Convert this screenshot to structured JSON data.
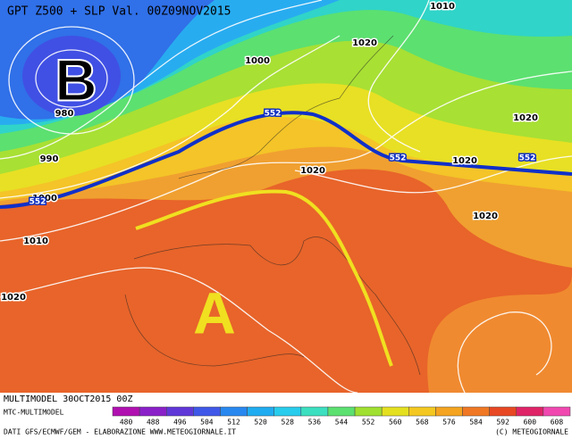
{
  "header": {
    "title": "GPT Z500 + SLP Val. 00Z09NOV2015"
  },
  "map": {
    "low_label": "B",
    "high_label": "A",
    "isobar_labels": [
      1010,
      1020,
      1000,
      980,
      990,
      1000,
      1010,
      1020,
      1020,
      1020,
      1020,
      1020
    ],
    "contour_labels": [
      552,
      552,
      552,
      552
    ]
  },
  "footer": {
    "run": "MULTIMODEL 30OCT2015 00Z",
    "source": "MTC-MULTIMODEL",
    "credits": "DATI GFS/ECMWF/GEM - ELABORAZIONE WWW.METEOGIORNALE.IT",
    "copyright": "(C) METEOGIORNALE"
  },
  "legend": {
    "values": [
      480,
      488,
      496,
      504,
      512,
      520,
      528,
      536,
      544,
      552,
      560,
      568,
      576,
      584,
      592,
      600,
      608
    ],
    "colors": [
      "#b010b0",
      "#8a20c8",
      "#6038d8",
      "#4058e8",
      "#2888f0",
      "#20acf0",
      "#28ccec",
      "#3ce0c0",
      "#5ce070",
      "#a0e030",
      "#e4e020",
      "#f4c820",
      "#f4a420",
      "#f07824",
      "#e84824",
      "#e02468",
      "#f048b0"
    ]
  }
}
